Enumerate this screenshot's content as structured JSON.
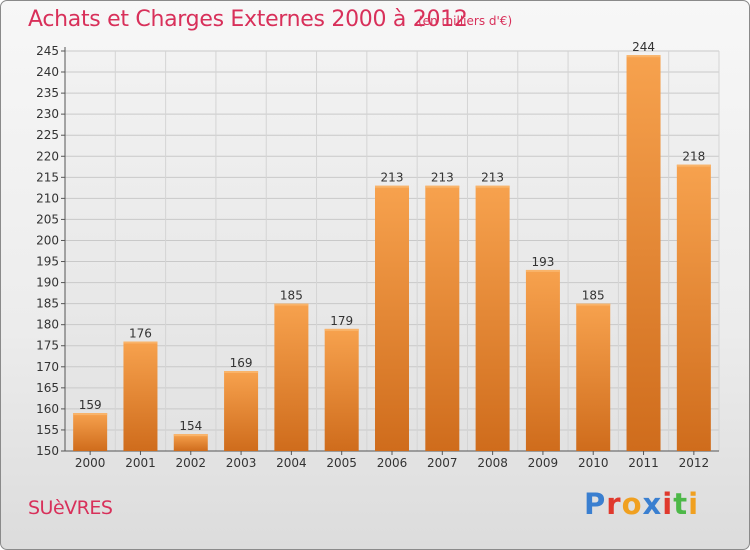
{
  "chart_data": {
    "type": "bar",
    "title": "Achats et Charges Externes 2000 à 2012",
    "subtitle": "(en milliers d'€)",
    "categories": [
      "2000",
      "2001",
      "2002",
      "2003",
      "2004",
      "2005",
      "2006",
      "2007",
      "2008",
      "2009",
      "2010",
      "2011",
      "2012"
    ],
    "values": [
      159,
      176,
      154,
      169,
      185,
      179,
      213,
      213,
      213,
      193,
      185,
      244,
      218
    ],
    "ylim": [
      150,
      245
    ],
    "ytick_step": 5,
    "grid": true,
    "bar_color": "#f0963c",
    "xlabel": "",
    "ylabel": ""
  },
  "footer": {
    "city": "SUèVRES",
    "brand": "Proxiti",
    "brand_colors": [
      "#3a7fd0",
      "#e0392d",
      "#f0a020",
      "#3a7fd0",
      "#e0392d",
      "#4db848",
      "#f0a020"
    ]
  }
}
